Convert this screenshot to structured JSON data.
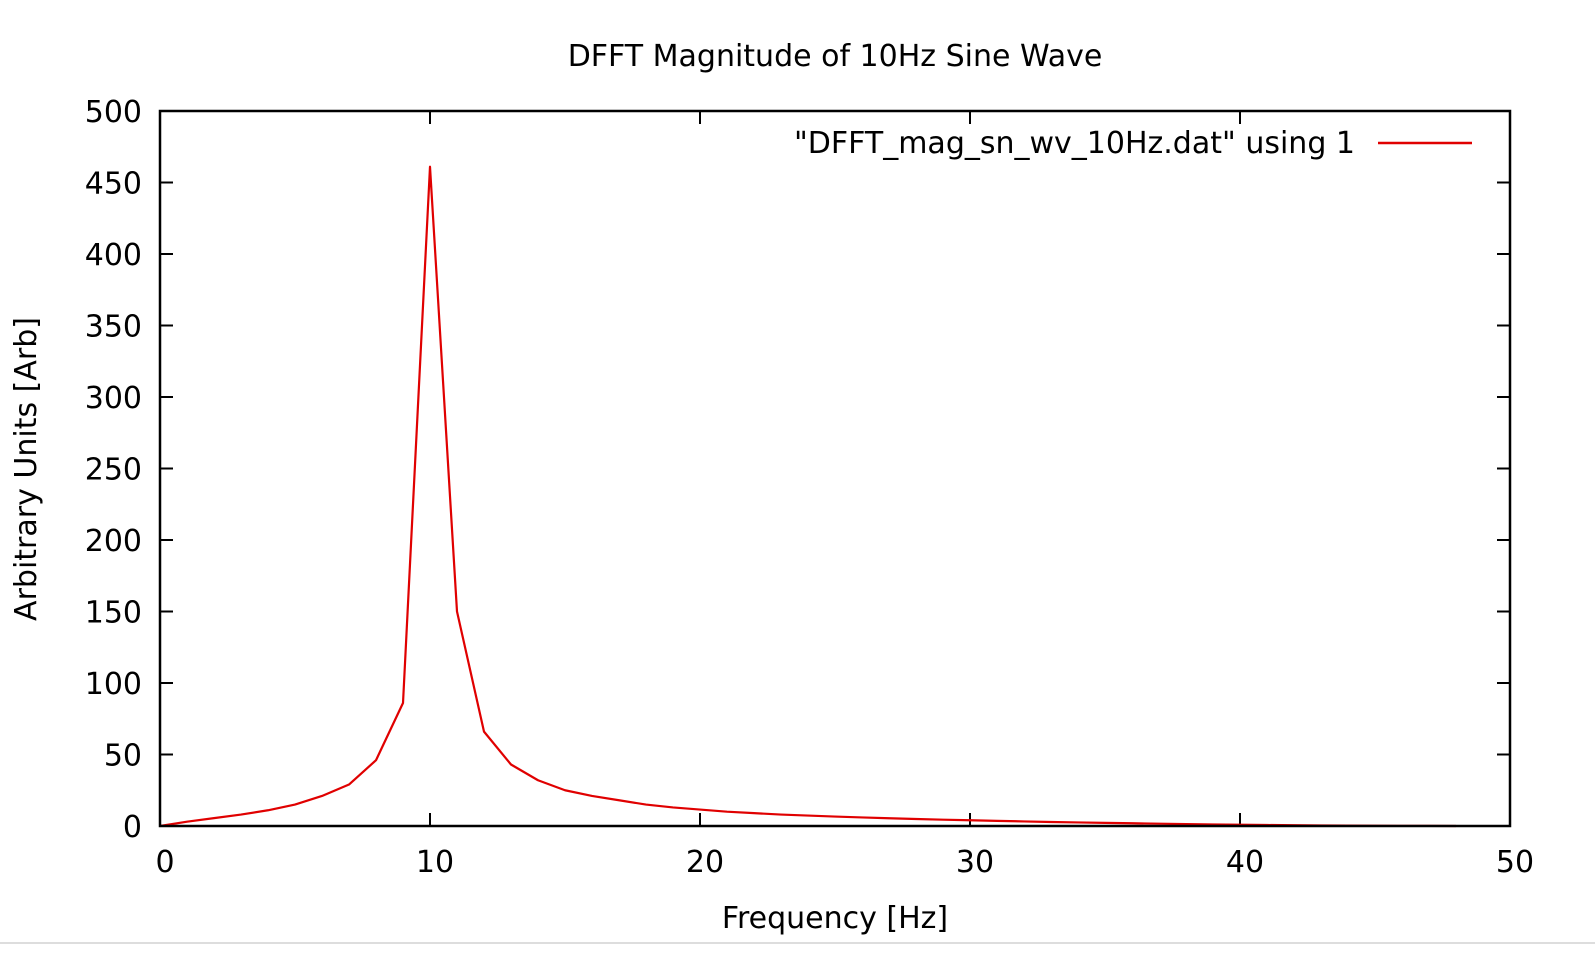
{
  "chart_data": {
    "type": "line",
    "title": "DFFT Magnitude of 10Hz Sine Wave",
    "xlabel": "Frequency [Hz]",
    "ylabel": "Arbitrary Units [Arb]",
    "xlim": [
      0,
      50
    ],
    "ylim": [
      0,
      500
    ],
    "xticks": [
      0,
      10,
      20,
      30,
      40,
      50
    ],
    "yticks": [
      0,
      50,
      100,
      150,
      200,
      250,
      300,
      350,
      400,
      450,
      500
    ],
    "grid": false,
    "legend_position": "top-right",
    "series": [
      {
        "name": "\"DFFT_mag_sn_wv_10Hz.dat\" using 1",
        "color": "#e00000",
        "x": [
          0,
          1,
          2,
          3,
          4,
          5,
          6,
          7,
          8,
          9,
          10,
          11,
          12,
          13,
          14,
          15,
          16,
          17,
          18,
          19,
          20,
          21,
          22,
          23,
          24,
          25,
          26,
          27,
          28,
          29,
          30,
          31,
          32,
          33,
          34,
          35,
          36,
          37,
          38,
          39,
          40,
          41,
          42,
          43,
          44,
          45,
          46,
          47,
          48
        ],
        "values": [
          0,
          3,
          5.5,
          8,
          11,
          15,
          21,
          29,
          46,
          86,
          461,
          150,
          66,
          43,
          32,
          25,
          21,
          18,
          15,
          13,
          11.5,
          10,
          9,
          8,
          7.3,
          6.6,
          6,
          5.4,
          4.9,
          4.4,
          4,
          3.6,
          3.2,
          2.8,
          2.5,
          2.2,
          1.9,
          1.6,
          1.3,
          1.1,
          0.9,
          0.7,
          0.5,
          0.4,
          0.3,
          0.2,
          0.1,
          0.1,
          0
        ]
      }
    ]
  }
}
